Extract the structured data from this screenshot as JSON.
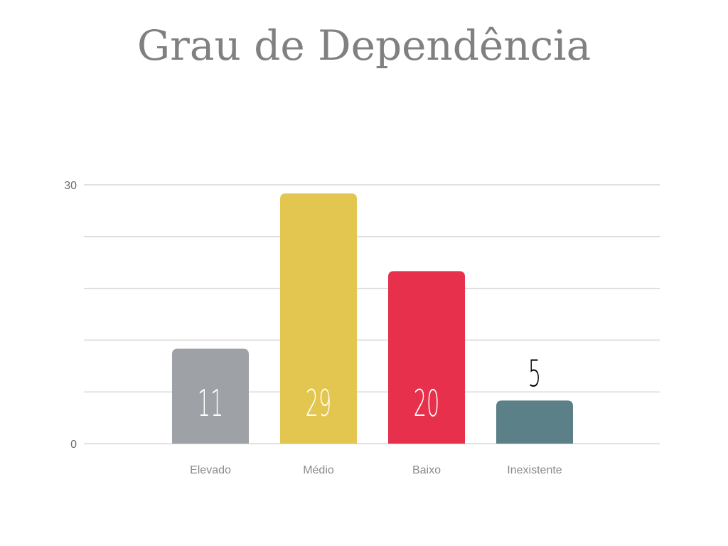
{
  "chart_data": {
    "type": "bar",
    "title": "Grau de Dependência",
    "categories": [
      "Elevado",
      "Médio",
      "Baixo",
      "Inexistente"
    ],
    "values": [
      11,
      29,
      20,
      5
    ],
    "colors": [
      "#9ea1a5",
      "#e3c64f",
      "#e6304c",
      "#5c8087"
    ],
    "data_label_colors": [
      "#ffffff",
      "#ffffff",
      "#ffffff",
      "#000000"
    ],
    "data_label_position": [
      "inside",
      "inside",
      "inside",
      "outside"
    ],
    "ylim": [
      0,
      30
    ],
    "y_ticks_labeled": [
      0,
      30
    ],
    "gridlines": [
      0,
      6,
      12,
      18,
      24,
      30
    ],
    "grid": true,
    "xlabel": "",
    "ylabel": ""
  }
}
